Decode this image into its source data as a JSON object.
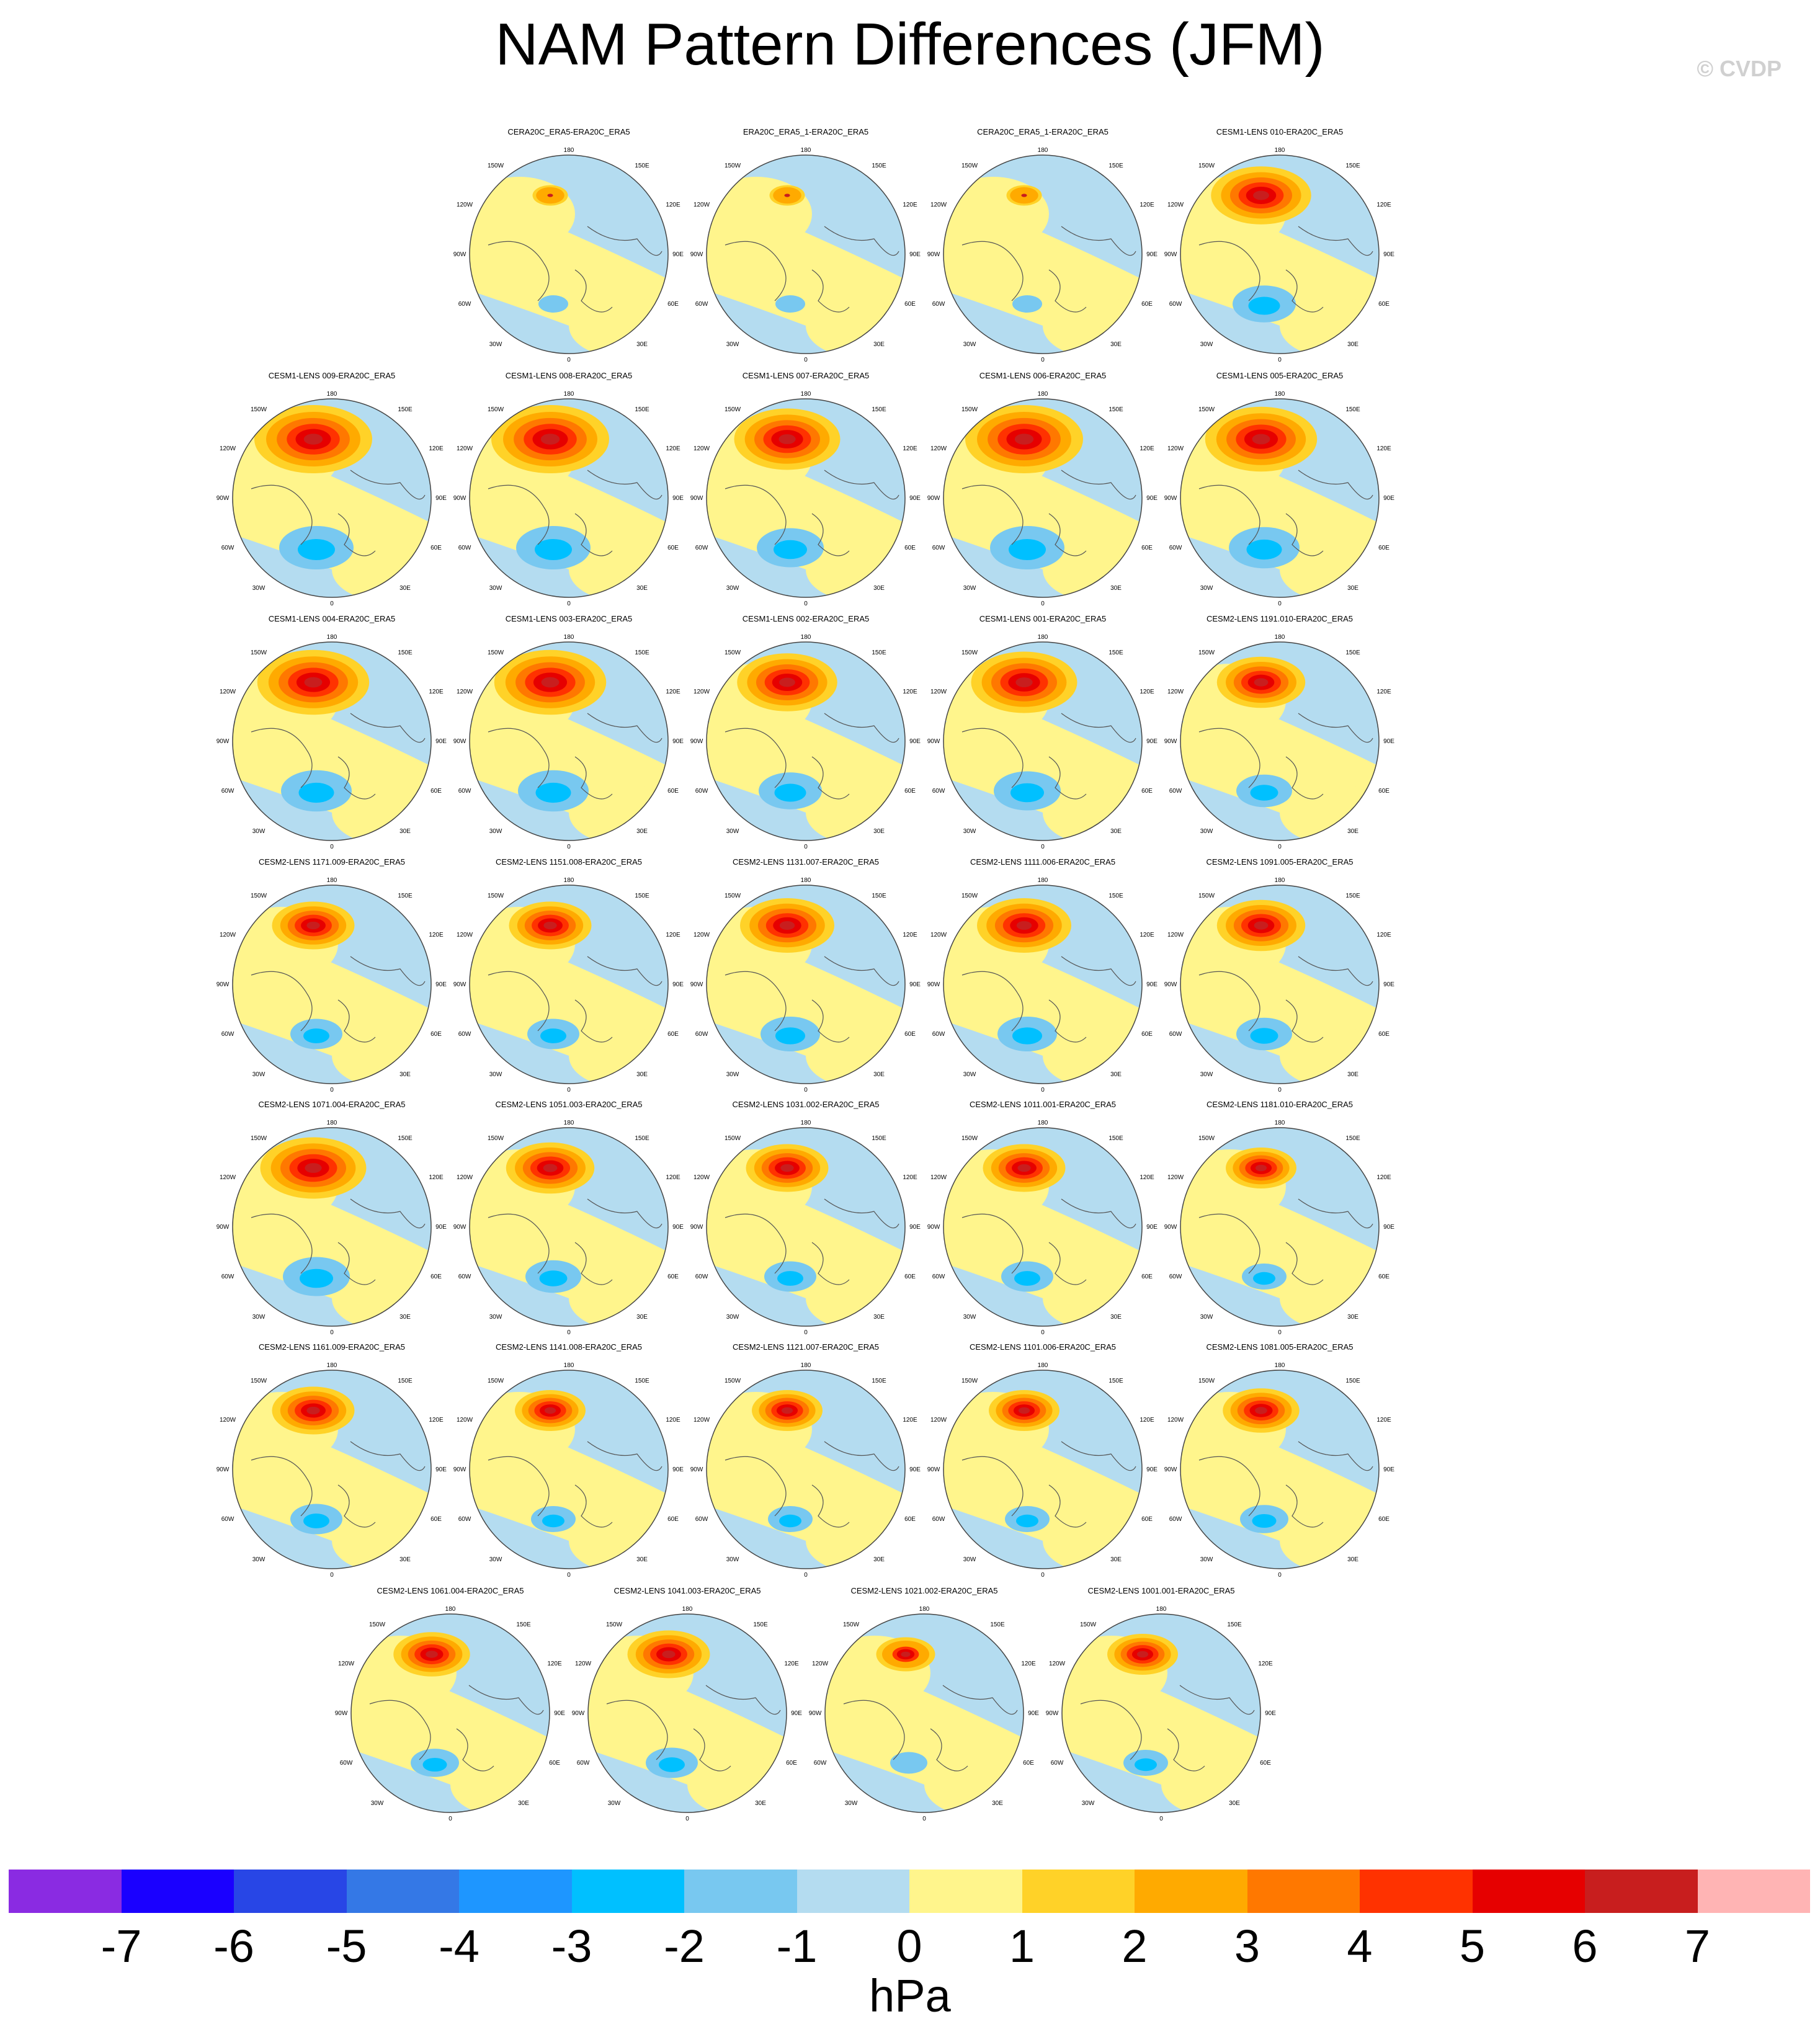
{
  "title": "NAM Pattern Differences (JFM)",
  "copyright": "© CVDP",
  "panels": [
    "CERA20C_ERA5-ERA20C_ERA5",
    "ERA20C_ERA5_1-ERA20C_ERA5",
    "CERA20C_ERA5_1-ERA20C_ERA5",
    "CESM1-LENS 010-ERA20C_ERA5",
    "CESM1-LENS 009-ERA20C_ERA5",
    "CESM1-LENS 008-ERA20C_ERA5",
    "CESM1-LENS 007-ERA20C_ERA5",
    "CESM1-LENS 006-ERA20C_ERA5",
    "CESM1-LENS 005-ERA20C_ERA5",
    "CESM1-LENS 004-ERA20C_ERA5",
    "CESM1-LENS 003-ERA20C_ERA5",
    "CESM1-LENS 002-ERA20C_ERA5",
    "CESM1-LENS 001-ERA20C_ERA5",
    "CESM2-LENS 1191.010-ERA20C_ERA5",
    "CESM2-LENS 1171.009-ERA20C_ERA5",
    "CESM2-LENS 1151.008-ERA20C_ERA5",
    "CESM2-LENS 1131.007-ERA20C_ERA5",
    "CESM2-LENS 1111.006-ERA20C_ERA5",
    "CESM2-LENS 1091.005-ERA20C_ERA5",
    "CESM2-LENS 1071.004-ERA20C_ERA5",
    "CESM2-LENS 1051.003-ERA20C_ERA5",
    "CESM2-LENS 1031.002-ERA20C_ERA5",
    "CESM2-LENS 1011.001-ERA20C_ERA5",
    "CESM2-LENS 1181.010-ERA20C_ERA5",
    "CESM2-LENS 1161.009-ERA20C_ERA5",
    "CESM2-LENS 1141.008-ERA20C_ERA5",
    "CESM2-LENS 1121.007-ERA20C_ERA5",
    "CESM2-LENS 1101.006-ERA20C_ERA5",
    "CESM2-LENS 1081.005-ERA20C_ERA5",
    "CESM2-LENS 1061.004-ERA20C_ERA5",
    "CESM2-LENS 1041.003-ERA20C_ERA5",
    "CESM2-LENS 1021.002-ERA20C_ERA5",
    "CESM2-LENS 1001.001-ERA20C_ERA5"
  ],
  "map_labels": {
    "top": "180",
    "bottom": "0",
    "left_upper": "150W",
    "right_upper": "150E",
    "left_mid_upper": "120W",
    "right_mid_upper": "120E",
    "left_mid": "90W",
    "right_mid": "90E",
    "left_mid_lower": "60W",
    "right_mid_lower": "60E",
    "left_lower": "30W",
    "right_lower": "30E"
  },
  "colorbar": {
    "colors": [
      "#8a2be2",
      "#1a00ff",
      "#2846e6",
      "#3478e6",
      "#1e96ff",
      "#00c0ff",
      "#78c8f0",
      "#b4dcf0",
      "#fff58c",
      "#ffd228",
      "#ffaa00",
      "#ff7800",
      "#ff3200",
      "#e60000",
      "#c81e1e",
      "#ffb4b4"
    ],
    "ticks": [
      "-7",
      "-6",
      "-5",
      "-4",
      "-3",
      "-2",
      "-1",
      "0",
      "1",
      "2",
      "3",
      "4",
      "5",
      "6",
      "7"
    ],
    "unit": "hPa"
  }
}
